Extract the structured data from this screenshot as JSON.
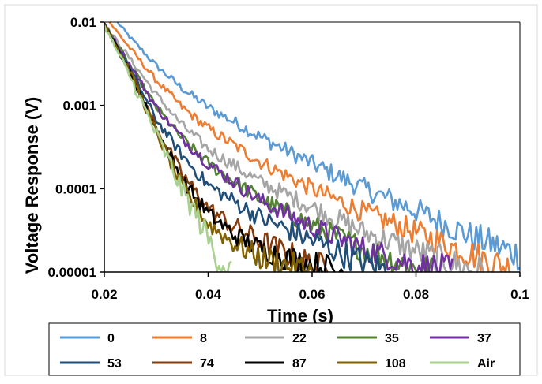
{
  "chart_data": {
    "type": "line",
    "title": "",
    "xlabel": "Time (s)",
    "ylabel": "Voltage Response (V)",
    "xlim": [
      0.02,
      0.1
    ],
    "ylim": [
      1e-05,
      0.01
    ],
    "yscale": "log",
    "x_tick_labels": [
      "0.02",
      "0.04",
      "0.06",
      "0.08",
      "0.1"
    ],
    "x_tick_values": [
      0.02,
      0.04,
      0.06,
      0.08,
      0.1
    ],
    "y_tick_labels": [
      "0.00001",
      "0.0001",
      "0.001",
      "0.01"
    ],
    "y_tick_values": [
      1e-05,
      0.0001,
      0.001,
      0.01
    ],
    "grid": false,
    "legend_position": "bottom",
    "series": [
      {
        "name": "0",
        "color": "#5B9BD5",
        "x": [
          0.0225,
          0.025,
          0.03,
          0.035,
          0.04,
          0.05,
          0.06,
          0.07,
          0.08,
          0.09,
          0.1
        ],
        "y": [
          0.01,
          0.0065,
          0.003,
          0.0016,
          0.00095,
          0.00042,
          0.0002,
          0.0001,
          5.5e-05,
          2.8e-05,
          1.6e-05
        ]
      },
      {
        "name": "8",
        "color": "#ED7D31",
        "x": [
          0.021,
          0.025,
          0.03,
          0.035,
          0.04,
          0.05,
          0.06,
          0.07,
          0.08,
          0.09,
          0.1
        ],
        "y": [
          0.01,
          0.0048,
          0.002,
          0.00095,
          0.00053,
          0.00021,
          0.0001,
          5.2e-05,
          3e-05,
          1.7e-05,
          1e-05
        ]
      },
      {
        "name": "22",
        "color": "#A5A5A5",
        "x": [
          0.02,
          0.025,
          0.03,
          0.035,
          0.04,
          0.05,
          0.06,
          0.07,
          0.08,
          0.09,
          0.093
        ],
        "y": [
          0.0095,
          0.0036,
          0.00135,
          0.00058,
          0.0003,
          0.00012,
          6e-05,
          3e-05,
          1.8e-05,
          1.1e-05,
          1e-05
        ]
      },
      {
        "name": "35",
        "color": "#548235",
        "x": [
          0.02,
          0.025,
          0.03,
          0.035,
          0.04,
          0.05,
          0.06,
          0.07,
          0.08,
          0.083
        ],
        "y": [
          0.0095,
          0.003,
          0.00095,
          0.0004,
          0.0002,
          7.5e-05,
          3.6e-05,
          1.9e-05,
          1.1e-05,
          1e-05
        ]
      },
      {
        "name": "37",
        "color": "#7030A0",
        "x": [
          0.02,
          0.025,
          0.03,
          0.035,
          0.04,
          0.05,
          0.06,
          0.07,
          0.08,
          0.087
        ],
        "y": [
          0.0095,
          0.003,
          0.00095,
          0.0004,
          0.0002,
          7.2e-05,
          3.5e-05,
          1.9e-05,
          1.2e-05,
          1e-05
        ]
      },
      {
        "name": "53",
        "color": "#1F4E79",
        "x": [
          0.02,
          0.025,
          0.03,
          0.035,
          0.04,
          0.05,
          0.06,
          0.07,
          0.075
        ],
        "y": [
          0.0095,
          0.0027,
          0.00068,
          0.00025,
          0.00011,
          4.5e-05,
          2.4e-05,
          1.3e-05,
          1e-05
        ]
      },
      {
        "name": "74",
        "color": "#843C0C",
        "x": [
          0.02,
          0.025,
          0.03,
          0.035,
          0.04,
          0.045,
          0.05,
          0.055,
          0.06,
          0.065
        ],
        "y": [
          0.0095,
          0.0025,
          0.00055,
          0.00015,
          5.8e-05,
          3.5e-05,
          2.4e-05,
          1.7e-05,
          1.2e-05,
          1e-05
        ]
      },
      {
        "name": "87",
        "color": "#000000",
        "x": [
          0.02,
          0.025,
          0.03,
          0.035,
          0.04,
          0.045,
          0.05,
          0.055,
          0.06,
          0.066
        ],
        "y": [
          0.0095,
          0.0025,
          0.00052,
          0.00013,
          5e-05,
          2.8e-05,
          1.9e-05,
          1.5e-05,
          1.2e-05,
          1e-05
        ]
      },
      {
        "name": "108",
        "color": "#806000",
        "x": [
          0.02,
          0.025,
          0.03,
          0.035,
          0.04,
          0.045,
          0.05,
          0.055,
          0.06
        ],
        "y": [
          0.0095,
          0.0025,
          0.00048,
          0.000105,
          3.8e-05,
          2.2e-05,
          1.5e-05,
          1.2e-05,
          1e-05
        ]
      },
      {
        "name": "Air",
        "color": "#A9D18E",
        "x": [
          0.02,
          0.025,
          0.03,
          0.035,
          0.038,
          0.04,
          0.042,
          0.0445
        ],
        "y": [
          0.009,
          0.0022,
          0.00045,
          9.5e-05,
          4.5e-05,
          2.5e-05,
          1.4e-05,
          1e-05
        ]
      }
    ]
  }
}
